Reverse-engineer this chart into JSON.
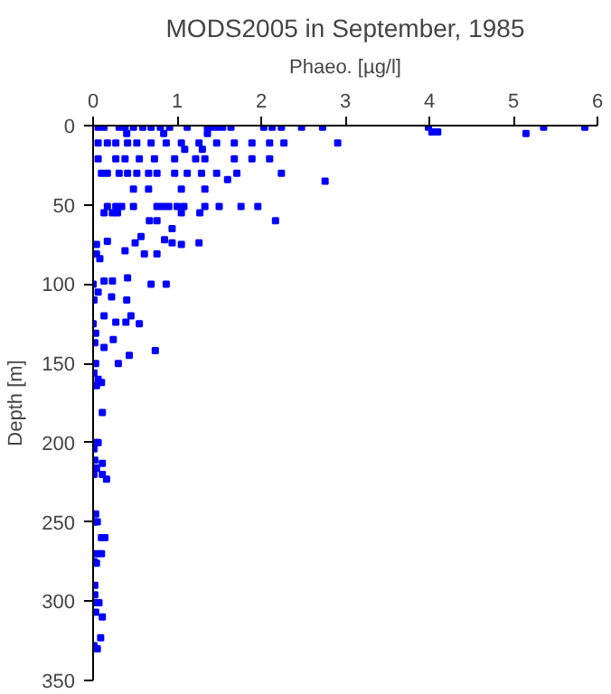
{
  "chart_data": {
    "type": "scatter",
    "title": "MODS2005 in September, 1985",
    "xlabel": "Phaeo. [µg/l]",
    "ylabel": "Depth [m]",
    "x": [
      0.06,
      0.13,
      0.31,
      0.38,
      0.48,
      0.59,
      0.69,
      0.8,
      0.91,
      1.12,
      1.36,
      1.4,
      1.47,
      1.54,
      1.64,
      2.03,
      2.13,
      2.24,
      2.48,
      2.73,
      3.99,
      5.36,
      5.85,
      4.03,
      4.1,
      5.15,
      0.4,
      0.84,
      1.36,
      0.06,
      0.17,
      0.27,
      0.41,
      0.52,
      0.69,
      0.87,
      1.05,
      1.26,
      1.47,
      1.68,
      1.89,
      2.1,
      2.27,
      2.91,
      1.09,
      1.3,
      0.06,
      0.27,
      0.38,
      0.55,
      0.73,
      0.97,
      1.22,
      1.33,
      1.68,
      1.89,
      2.1,
      0.1,
      0.17,
      0.31,
      0.41,
      0.52,
      0.66,
      0.76,
      0.97,
      1.12,
      1.29,
      1.47,
      1.71,
      2.24,
      2.76,
      1.6,
      0.48,
      0.66,
      1.05,
      1.33,
      0.17,
      0.27,
      0.34,
      0.48,
      0.76,
      0.83,
      0.9,
      1.0,
      1.08,
      1.33,
      1.5,
      1.76,
      1.96,
      0.13,
      0.23,
      0.29,
      1.05,
      1.27,
      2.17,
      0.67,
      0.76,
      0.94,
      0.57,
      0.85,
      1.05,
      1.26,
      0.94,
      0.5,
      0.17,
      0.04,
      0.38,
      0.61,
      0.76,
      0.04,
      0.08,
      0.0,
      0.13,
      0.23,
      0.41,
      0.69,
      0.87,
      0.06,
      0.22,
      0.4,
      0.01,
      0.13,
      0.27,
      0.39,
      0.45,
      0.55,
      0.0,
      0.03,
      0.24,
      0.02,
      0.13,
      0.74,
      0.43,
      0.3,
      0.03,
      0.01,
      0.06,
      0.1,
      0.04,
      0.11,
      0.03,
      0.06,
      0.01,
      0.02,
      0.11,
      0.04,
      0.01,
      0.11,
      0.16,
      0.03,
      0.02,
      0.05,
      0.1,
      0.14,
      0.04,
      0.1,
      0.01,
      0.04,
      0.02,
      0.02,
      0.02,
      0.07,
      0.03,
      0.11,
      0.09,
      0.01,
      0.05
    ],
    "values": [
      1,
      1,
      1,
      1,
      1,
      1,
      1,
      1,
      1,
      1,
      1,
      1,
      1,
      1,
      1,
      1,
      1,
      1,
      1,
      1,
      1,
      1,
      1,
      4,
      4,
      5,
      5,
      5,
      5,
      11,
      11,
      11,
      11,
      11,
      11,
      11,
      11,
      11,
      11,
      11,
      11,
      11,
      11,
      11,
      15,
      15,
      21,
      21,
      21,
      21,
      21,
      21,
      21,
      21,
      21,
      21,
      21,
      30,
      30,
      30,
      30,
      30,
      30,
      30,
      30,
      30,
      30,
      30,
      30,
      30,
      35,
      34,
      40,
      40,
      40,
      40,
      51,
      51,
      51,
      51,
      51,
      51,
      51,
      51,
      51,
      51,
      51,
      51,
      51,
      55,
      55,
      55,
      55,
      55,
      60,
      60,
      60,
      65,
      70,
      72,
      75,
      74,
      74,
      74,
      73,
      75,
      79,
      81,
      81,
      81,
      84,
      100,
      98,
      98,
      96,
      100,
      100,
      105,
      108,
      110,
      110,
      120,
      124,
      124,
      120,
      125,
      125,
      131,
      135,
      137,
      140,
      142,
      145,
      150,
      150,
      156,
      160,
      162,
      164,
      181,
      200,
      200,
      204,
      211,
      213,
      216,
      220,
      220,
      223,
      245,
      250,
      250,
      260,
      260,
      270,
      270,
      275,
      276,
      290,
      296,
      301,
      301,
      307,
      310,
      323,
      328,
      330
    ],
    "color": "#0000ff",
    "marker": "square",
    "xlim": [
      0,
      6
    ],
    "xticks": [
      0,
      1,
      2,
      3,
      4,
      5,
      6
    ],
    "ylim": [
      350,
      0
    ],
    "yticks": [
      0,
      50,
      100,
      150,
      200,
      250,
      300,
      350
    ],
    "grid": false
  }
}
